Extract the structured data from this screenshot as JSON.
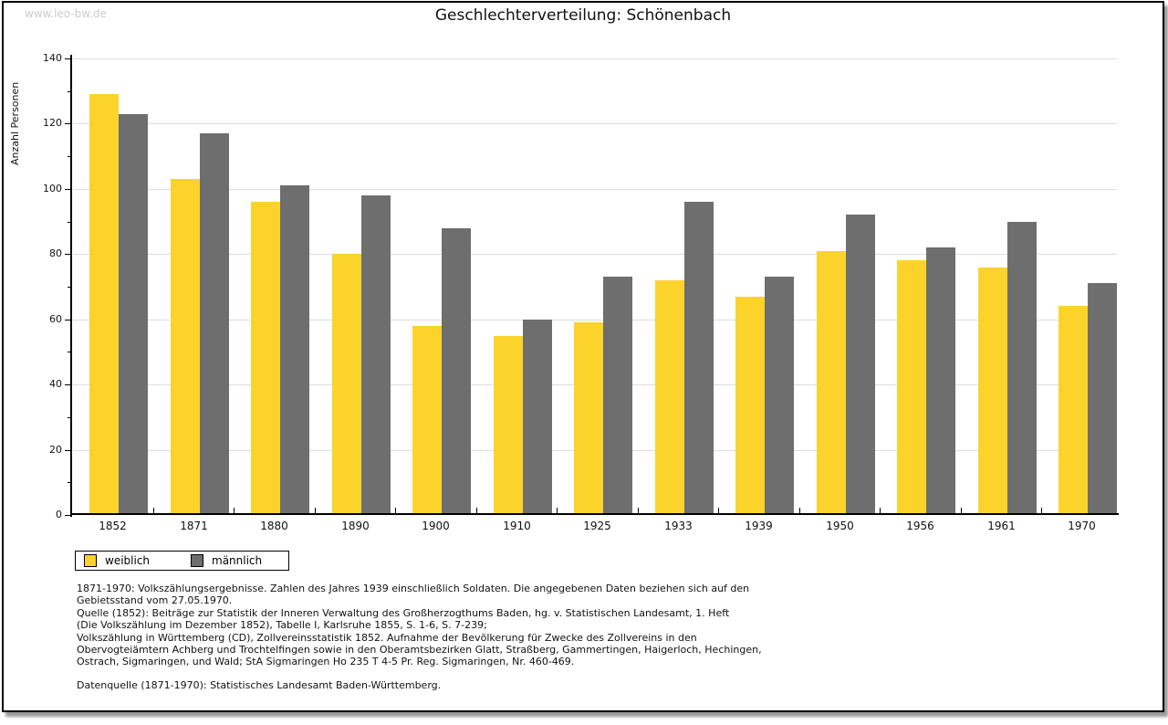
{
  "watermark": "www.leo-bw.de",
  "title": "Geschlechterverteilung: Schönenbach",
  "chart_data": {
    "type": "bar",
    "title": "Geschlechterverteilung: Schönenbach",
    "xlabel": "",
    "ylabel": "Anzahl Personen",
    "ylim": [
      0,
      140
    ],
    "ytick_step": 20,
    "yminor_step": 10,
    "grid": true,
    "legend_position": "bottom-left",
    "categories": [
      "1852",
      "1871",
      "1880",
      "1890",
      "1900",
      "1910",
      "1925",
      "1933",
      "1939",
      "1950",
      "1956",
      "1961",
      "1970"
    ],
    "series": [
      {
        "name": "weiblich",
        "color": "#FCD32B",
        "values": [
          129,
          103,
          96,
          80,
          58,
          55,
          59,
          72,
          67,
          81,
          78,
          76,
          64
        ]
      },
      {
        "name": "männlich",
        "color": "#6E6E6E",
        "values": [
          123,
          117,
          101,
          98,
          88,
          60,
          73,
          96,
          73,
          92,
          82,
          90,
          71
        ]
      }
    ]
  },
  "legend": {
    "items": [
      {
        "label": "weiblich",
        "color": "#FCD32B"
      },
      {
        "label": "männlich",
        "color": "#6E6E6E"
      }
    ]
  },
  "notes": {
    "lines": [
      "1871-1970: Volkszählungsergebnisse. Zahlen des Jahres 1939 einschließlich Soldaten. Die angegebenen Daten beziehen sich auf den",
      "Gebietsstand vom 27.05.1970.",
      "Quelle (1852): Beiträge zur Statistik der Inneren Verwaltung des Großherzogthums Baden, hg. v. Statistischen Landesamt, 1. Heft",
      "(Die Volkszählung im Dezember 1852), Tabelle I, Karlsruhe 1855, S. 1-6, S. 7-239;",
      "Volkszählung in Württemberg (CD), Zollvereinsstatistik 1852. Aufnahme der Bevölkerung für Zwecke des Zollvereins in den",
      "Obervogteiämtern Achberg und Trochtelfingen sowie in den Oberamtsbezirken Glatt, Straßberg, Gammertingen, Haigerloch, Hechingen,",
      "Ostrach, Sigmaringen, und Wald; StA Sigmaringen Ho 235 T 4-5 Pr. Reg. Sigmaringen, Nr. 460-469."
    ],
    "source": "Datenquelle (1871-1970): Statistisches Landesamt Baden-Württemberg."
  }
}
